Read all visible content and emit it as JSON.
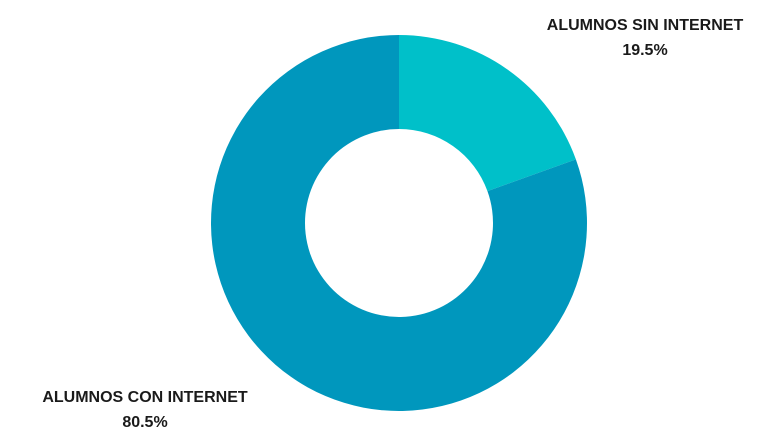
{
  "chart_data": {
    "type": "pie",
    "donut": true,
    "title": "",
    "legend": "none",
    "slices": [
      {
        "label": "ALUMNOS SIN INTERNET",
        "value": 19.5,
        "value_label": "19.5%",
        "color": "#00c0c9"
      },
      {
        "label": "ALUMNOS CON INTERNET",
        "value": 80.5,
        "value_label": "80.5%",
        "color": "#0097bd"
      }
    ]
  }
}
